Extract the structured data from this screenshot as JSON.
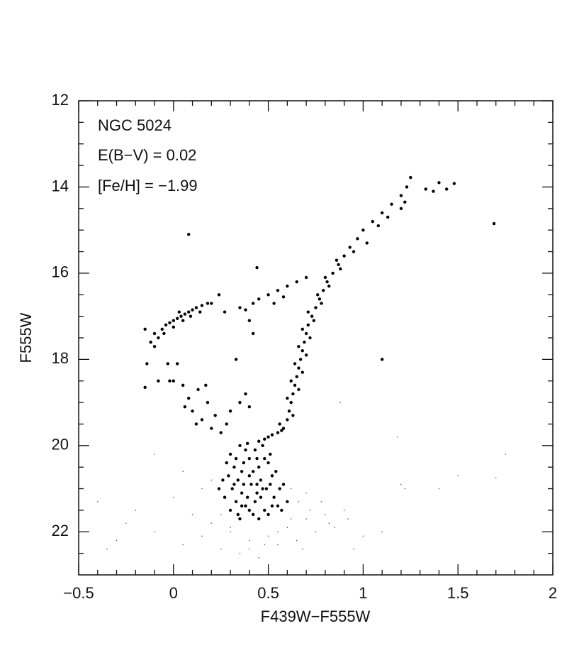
{
  "chart_data": {
    "type": "scatter",
    "annotations": [
      "NGC 5024",
      "E(B−V) = 0.02",
      "[Fe/H] = −1.99"
    ],
    "xlabel": "F439W−F555W",
    "ylabel": "F555W",
    "xlim": [
      -0.5,
      2
    ],
    "ylim": [
      12,
      23
    ],
    "y_inverted": true,
    "xticks": [
      {
        "value": -0.5,
        "label": "−0.5"
      },
      0,
      0.5,
      1,
      1.5,
      2
    ],
    "yticks": [
      12,
      14,
      16,
      18,
      20,
      22
    ],
    "xminorticks": [
      -0.4,
      -0.3,
      -0.2,
      -0.1,
      0.1,
      0.2,
      0.3,
      0.4,
      0.6,
      0.7,
      0.8,
      0.9,
      1.1,
      1.2,
      1.3,
      1.4,
      1.6,
      1.7,
      1.8,
      1.9
    ],
    "yminorticks": [
      12.5,
      13,
      13.5,
      14.5,
      15,
      15.5,
      16.5,
      17,
      17.5,
      18.5,
      19,
      19.5,
      20.5,
      21,
      21.5,
      22.5
    ],
    "series": [
      {
        "color": "#000000",
        "size": 2.2,
        "x": [
          0.58,
          0.6,
          0.61,
          0.62,
          0.63,
          0.64,
          0.65,
          0.66,
          0.67,
          0.68,
          0.69,
          0.7,
          0.71,
          0.73,
          0.75,
          0.77,
          0.79,
          0.81,
          0.84,
          0.87,
          0.9,
          0.93,
          0.97,
          1.0,
          1.05,
          1.1,
          1.15,
          1.2,
          1.23,
          1.25,
          0.56,
          0.63,
          0.6,
          0.66,
          0.62,
          0.68,
          0.64,
          0.7,
          0.66,
          0.72,
          0.68,
          0.74,
          0.71,
          0.78,
          0.76,
          0.82,
          0.8,
          0.88,
          0.86,
          0.95,
          1.02,
          1.08,
          1.13,
          1.2,
          1.22,
          0.45,
          0.5,
          0.55,
          0.52,
          0.48,
          0.57,
          0.02,
          0.05,
          0.08,
          0.1,
          0.13,
          0.15,
          0.18,
          0.2,
          0.22,
          0.25,
          0.0,
          -0.02,
          0.06,
          0.12,
          0.28,
          0.3,
          0.35,
          0.38,
          0.4,
          0.17,
          -0.15,
          -0.12,
          -0.1,
          -0.08,
          -0.06,
          -0.04,
          -0.02,
          0.0,
          0.02,
          0.04,
          0.06,
          0.08,
          0.1,
          0.12,
          0.15,
          0.18,
          0.2,
          -0.05,
          0.0,
          0.05,
          -0.1,
          0.03,
          0.09,
          0.14,
          0.24,
          0.27,
          -0.14,
          -0.15,
          -0.03,
          -0.08,
          0.35,
          0.38,
          0.42,
          0.45,
          0.5,
          0.55,
          0.6,
          0.65,
          0.7,
          0.4,
          0.42,
          0.44,
          0.53,
          0.58,
          0.08,
          1.1,
          1.69,
          1.33,
          1.37,
          1.4,
          1.44,
          1.48,
          0.33,
          0.3,
          0.32,
          0.34,
          0.36,
          0.38,
          0.4,
          0.42,
          0.44,
          0.46,
          0.48,
          0.5,
          0.52,
          0.35,
          0.39,
          0.43,
          0.47,
          0.51,
          0.29,
          0.31,
          0.33,
          0.37,
          0.41,
          0.45,
          0.49,
          0.53,
          0.55,
          0.3,
          0.34,
          0.42,
          0.5,
          0.36,
          0.38,
          0.4,
          0.44,
          0.46,
          0.48,
          0.33,
          0.37,
          0.39,
          0.43,
          0.47,
          0.51,
          0.54,
          0.28,
          0.32,
          0.36,
          0.4,
          0.44,
          0.52,
          0.56,
          0.26,
          0.27,
          0.58,
          0.57,
          0.24,
          0.45,
          0.35,
          0.6
        ],
        "values": [
          19.6,
          19.4,
          19.2,
          19.0,
          18.8,
          18.6,
          18.4,
          18.2,
          18.0,
          17.8,
          17.6,
          17.4,
          17.2,
          17.0,
          16.8,
          16.6,
          16.4,
          16.2,
          16.0,
          15.8,
          15.6,
          15.4,
          15.2,
          15.0,
          14.8,
          14.6,
          14.4,
          14.2,
          14.0,
          13.78,
          19.5,
          19.3,
          18.9,
          18.7,
          18.5,
          18.3,
          18.1,
          17.9,
          17.7,
          17.5,
          17.3,
          17.1,
          16.9,
          16.7,
          16.5,
          16.3,
          16.1,
          15.9,
          15.7,
          15.5,
          15.3,
          14.9,
          14.7,
          14.5,
          14.35,
          19.9,
          19.8,
          19.7,
          19.75,
          19.85,
          19.65,
          18.1,
          18.6,
          18.9,
          19.2,
          18.7,
          19.4,
          19.0,
          19.6,
          19.3,
          19.7,
          18.5,
          18.5,
          19.1,
          19.5,
          19.5,
          19.2,
          19.0,
          18.8,
          19.1,
          18.6,
          17.3,
          17.6,
          17.4,
          17.5,
          17.3,
          17.2,
          17.15,
          17.1,
          17.05,
          17.0,
          16.95,
          16.9,
          16.85,
          16.8,
          16.75,
          16.7,
          16.7,
          17.4,
          17.25,
          17.1,
          17.7,
          16.9,
          17.0,
          16.9,
          16.5,
          16.9,
          18.1,
          18.65,
          18.1,
          18.5,
          16.8,
          16.85,
          16.7,
          16.6,
          16.5,
          16.4,
          16.3,
          16.2,
          16.1,
          17.1,
          17.4,
          15.87,
          16.7,
          16.55,
          15.1,
          18.0,
          14.85,
          14.05,
          14.1,
          13.9,
          14.05,
          13.92,
          18.0,
          20.2,
          20.5,
          20.8,
          21.1,
          21.4,
          20.3,
          20.6,
          20.9,
          21.2,
          21.5,
          20.4,
          20.7,
          20.0,
          19.95,
          20.1,
          20.0,
          20.2,
          20.7,
          21.0,
          21.3,
          20.4,
          20.9,
          20.5,
          21.0,
          21.2,
          21.4,
          21.5,
          21.6,
          21.6,
          21.6,
          20.6,
          20.1,
          20.7,
          20.3,
          20.8,
          20.3,
          20.3,
          20.9,
          21.2,
          21.3,
          21.0,
          20.9,
          20.6,
          20.4,
          20.9,
          21.4,
          21.5,
          21.1,
          21.4,
          21.0,
          20.8,
          21.2,
          20.9,
          21.5,
          21.0,
          21.7,
          21.7,
          21.3
        ]
      },
      {
        "color": "#555555",
        "size": 0.8,
        "x": [
          -0.4,
          -0.3,
          -0.2,
          -0.1,
          0.0,
          0.05,
          0.1,
          0.15,
          0.2,
          0.25,
          0.3,
          0.35,
          0.4,
          0.45,
          0.5,
          0.55,
          0.6,
          0.65,
          0.7,
          0.75,
          0.8,
          0.85,
          0.9,
          1.0,
          1.1,
          1.2,
          1.22,
          1.4,
          1.5,
          1.7,
          1.75,
          1.18,
          0.88,
          -0.1,
          0.05,
          0.15,
          0.2,
          0.62,
          0.66,
          0.7,
          0.72,
          0.78,
          0.82,
          0.3,
          0.25,
          0.55,
          0.62,
          0.4,
          0.48,
          -0.35,
          -0.25,
          -0.45,
          0.68,
          0.92,
          0.95
        ],
        "values": [
          21.3,
          22.2,
          21.5,
          22.0,
          21.2,
          22.3,
          21.6,
          22.1,
          21.8,
          22.4,
          22.0,
          22.5,
          22.2,
          22.6,
          22.1,
          22.3,
          21.9,
          22.2,
          21.7,
          22.0,
          21.6,
          21.9,
          21.5,
          22.1,
          22.0,
          20.9,
          21.0,
          21.0,
          20.7,
          20.75,
          20.2,
          19.8,
          19.0,
          20.2,
          20.6,
          21.0,
          20.8,
          21.0,
          21.3,
          21.1,
          21.5,
          21.3,
          21.8,
          21.9,
          21.6,
          22.0,
          21.7,
          22.4,
          22.3,
          22.4,
          21.8,
          22.0,
          22.4,
          21.7,
          22.4
        ]
      }
    ]
  }
}
